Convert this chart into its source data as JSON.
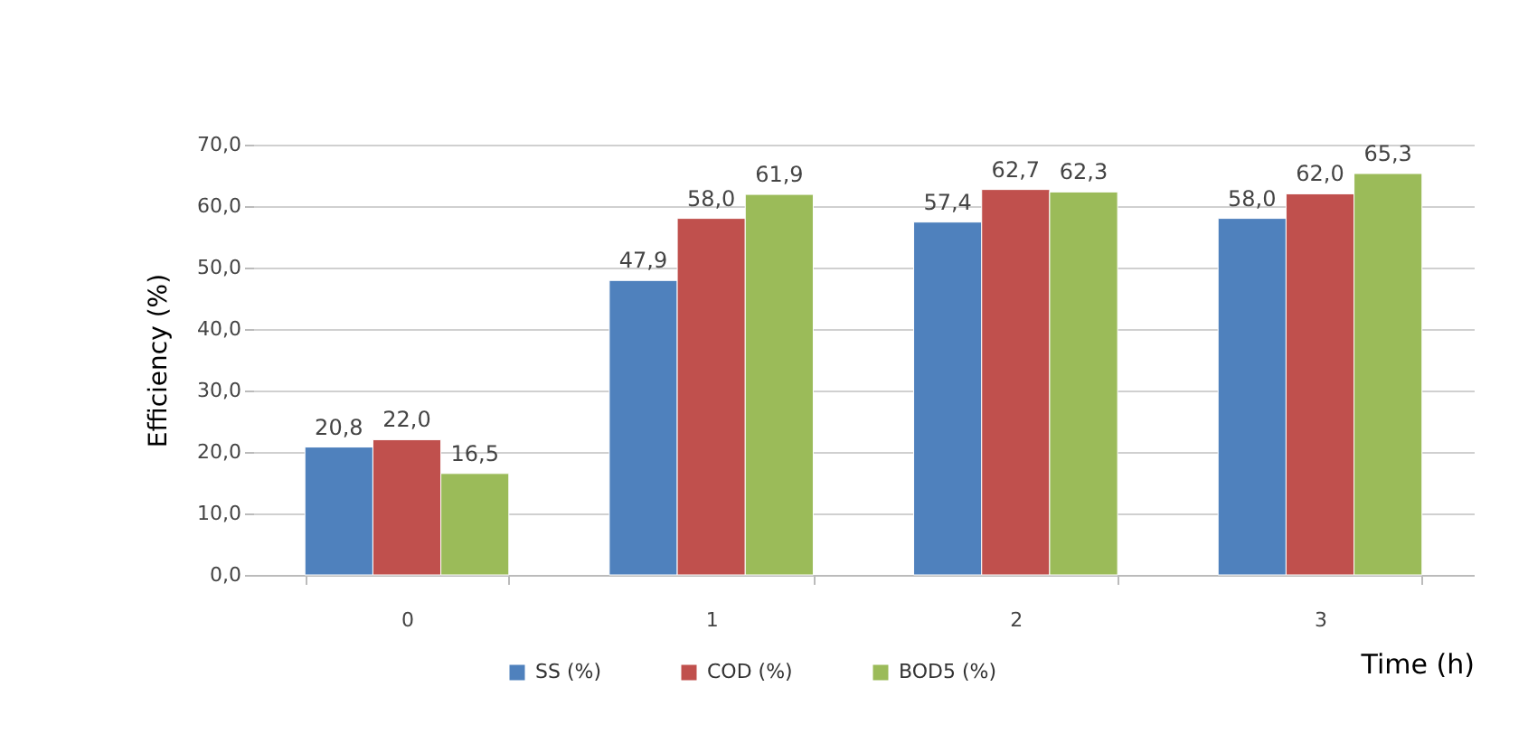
{
  "chart_data": {
    "type": "bar",
    "xlabel": "Time (h)",
    "ylabel": "Efficiency (%)",
    "categories": [
      "0",
      "1",
      "2",
      "3"
    ],
    "series": [
      {
        "name": "SS (%)",
        "color": "#4f81bd",
        "values": [
          20.8,
          47.9,
          57.4,
          58.0
        ],
        "value_labels": [
          "20,8",
          "47,9",
          "57,4",
          "58,0"
        ]
      },
      {
        "name": "COD (%)",
        "color": "#c0504d",
        "values": [
          22.0,
          58.0,
          62.7,
          62.0
        ],
        "value_labels": [
          "22,0",
          "58,0",
          "62,7",
          "62,0"
        ]
      },
      {
        "name": "BOD5 (%)",
        "color": "#9bbb59",
        "values": [
          16.5,
          61.9,
          62.3,
          65.3
        ],
        "value_labels": [
          "16,5",
          "61,9",
          "62,3",
          "65,3"
        ]
      }
    ],
    "ylim": [
      0,
      70
    ],
    "yticks": [
      {
        "value": 0,
        "label": "0,0"
      },
      {
        "value": 10,
        "label": "10,0"
      },
      {
        "value": 20,
        "label": "20,0"
      },
      {
        "value": 30,
        "label": "30,0"
      },
      {
        "value": 40,
        "label": "40,0"
      },
      {
        "value": 50,
        "label": "50,0"
      },
      {
        "value": 60,
        "label": "60,0"
      },
      {
        "value": 70,
        "label": "70,0"
      }
    ],
    "grid": "y",
    "legend": "bottom"
  }
}
